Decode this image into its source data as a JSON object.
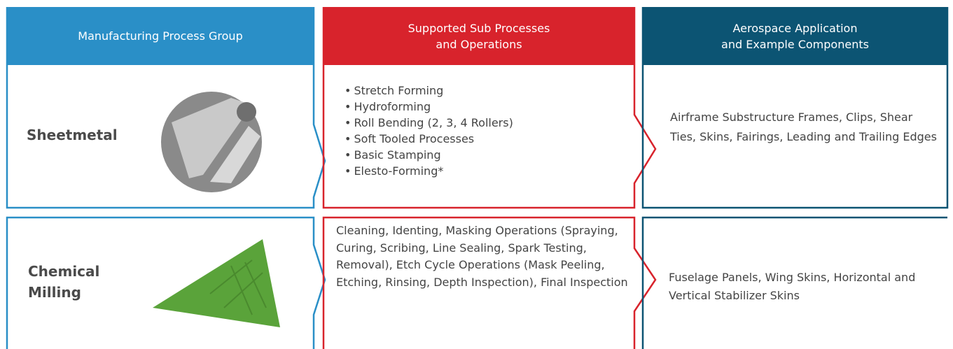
{
  "headers": [
    "Manufacturing Process Group",
    "Supported Sub Processes\nand Operations",
    "Aerospace Application\nand Example Components"
  ],
  "rows": [
    {
      "group": "Sheetmetal",
      "sub_processes": [
        "Stretch Forming",
        "Hydroforming",
        "Roll Bending (2, 3, 4 Rollers)",
        "Soft Tooled Processes",
        "Basic Stamping",
        "Elesto-Forming*"
      ],
      "applications": "Airframe Substructure Frames, Clips, Shear Ties, Skins, Fairings, Leading and Trailing Edges"
    },
    {
      "group": "Chemical Milling",
      "sub_processes": "Cleaning, Identing, Masking Operations (Spraying, Curing, Scribing, Line Sealing, Spark Testing, Removal), Etch Cycle Operations (Mask Peeling, Etching, Rinsing, Depth Inspection), Final Inspection",
      "applications": "Fuselage Panels, Wing Skins, Horizontal and Vertical Stabilizer Skins"
    }
  ]
}
